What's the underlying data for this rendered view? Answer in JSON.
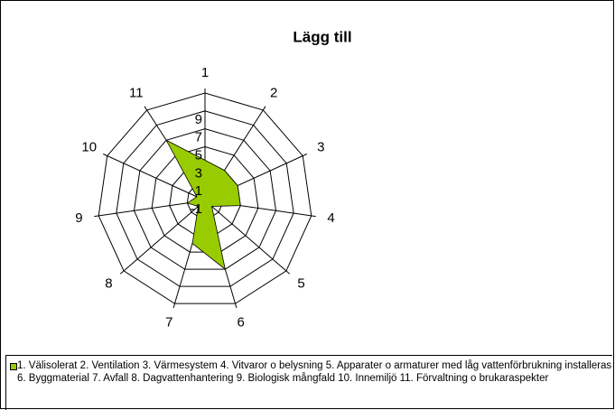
{
  "chart_data": {
    "type": "radar",
    "title": "Lägg till",
    "categories": [
      "1",
      "2",
      "3",
      "4",
      "5",
      "6",
      "7",
      "8",
      "9",
      "10",
      "11"
    ],
    "series": [
      {
        "name": "1. Välisolerat 2. Ventilation 3. Värmesystem 4. Vitvaror o belysning 5. Apparater o armaturer med låg vattenförbrukning installeras 6. Byggmaterial 7. Avfall 8. Dagvattenhantering 9. Biologisk mångfald 10. Innemiljö 11. Förvaltning o brukaraspekter",
        "color": "#99cc00",
        "values": [
          3.5,
          3,
          3,
          3,
          0,
          7,
          4,
          0,
          1,
          0,
          7
        ]
      }
    ],
    "ylim": [
      -1,
      11
    ],
    "yticks": [
      -1,
      1,
      3,
      5,
      7,
      9
    ],
    "grid": true
  }
}
